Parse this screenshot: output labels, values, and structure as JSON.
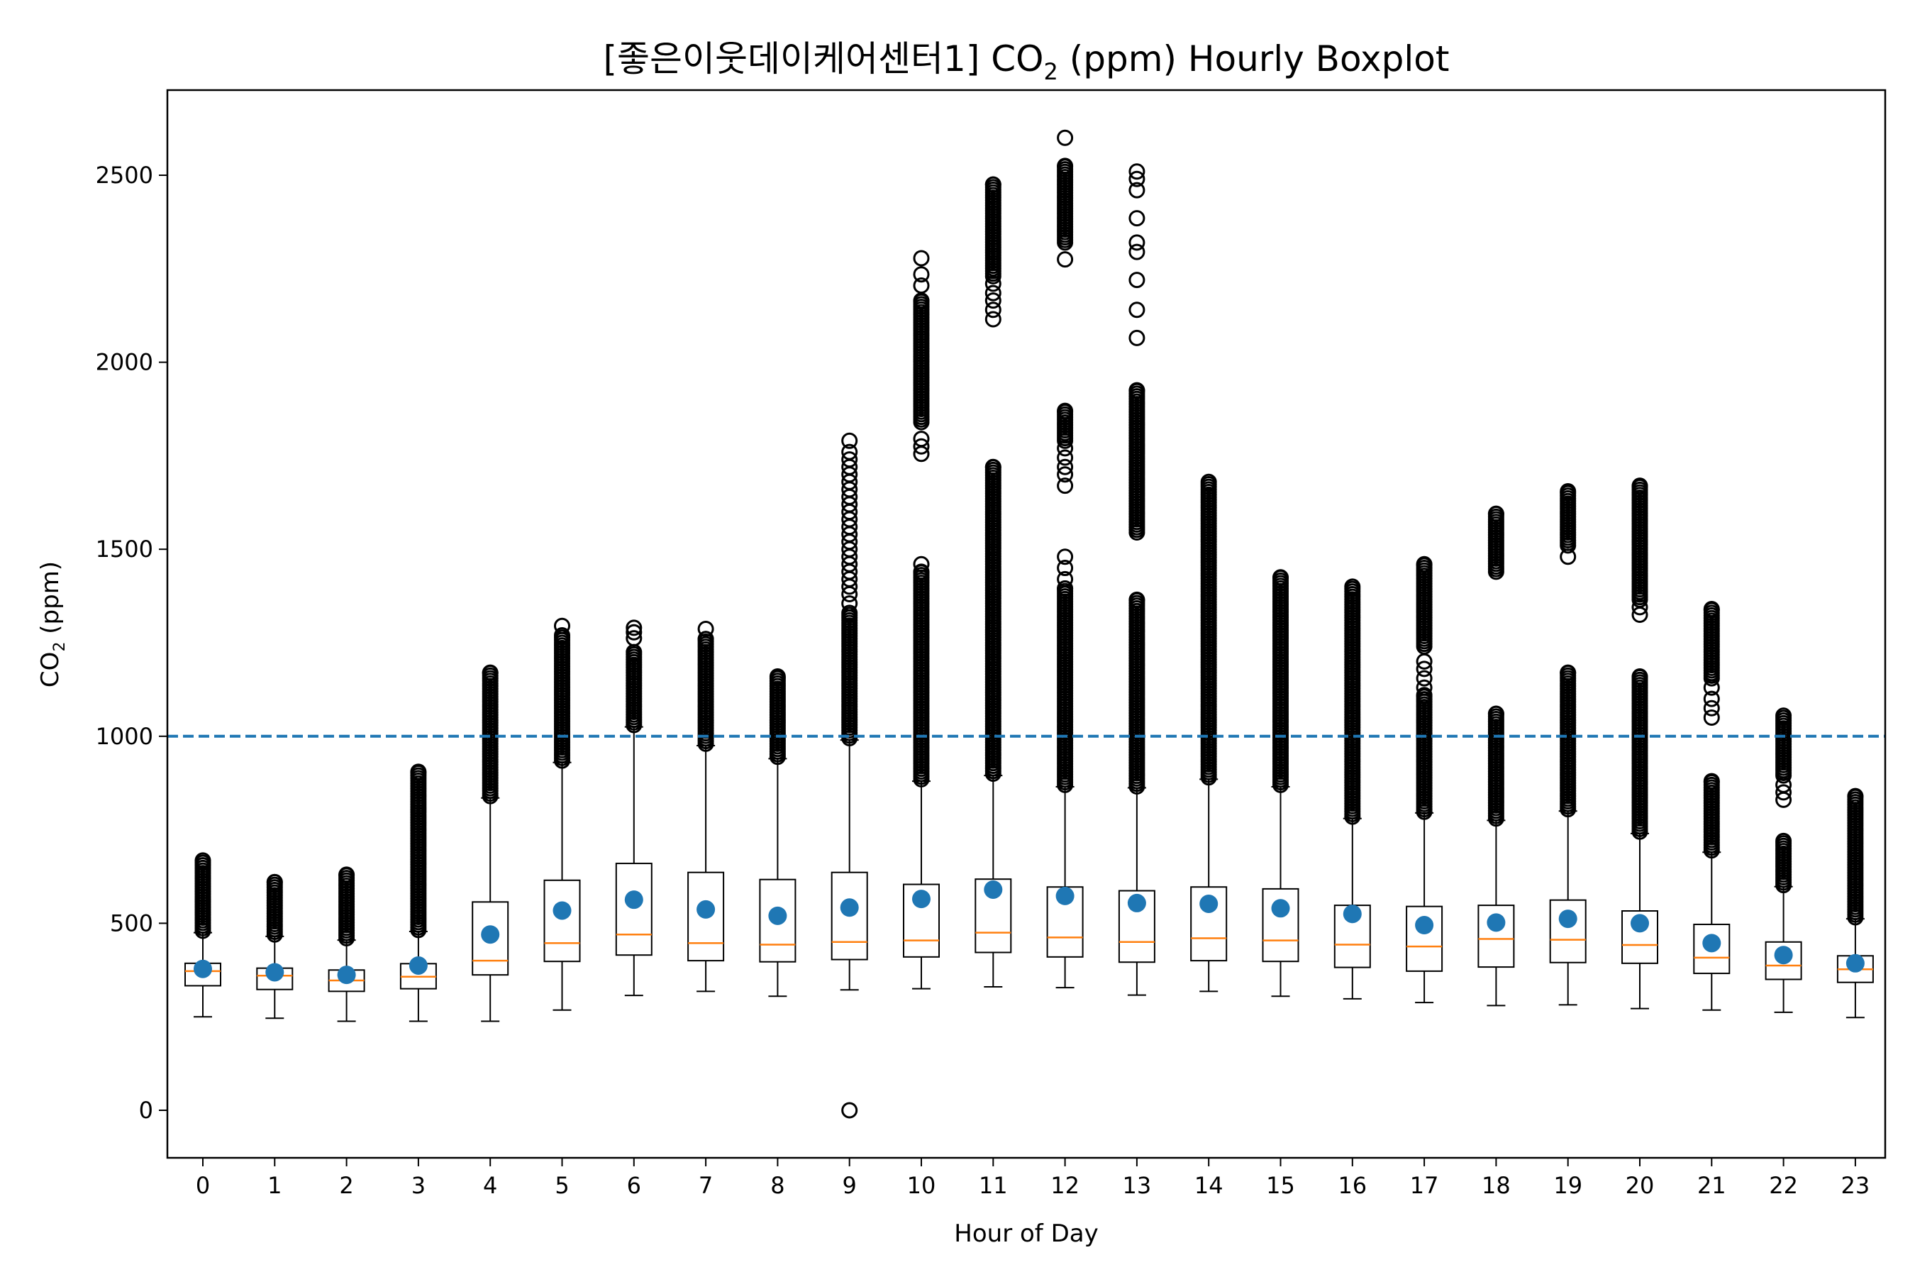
{
  "chart_data": {
    "type": "boxplot",
    "title": "[좋은이웃데이케어센터1] CO",
    "title_sub": "2",
    "title_tail": " (ppm) Hourly Boxplot",
    "xlabel": "Hour of Day",
    "ylabel": "CO",
    "ylabel_sub": "2",
    "ylabel_tail": " (ppm)",
    "ylim": [
      -125,
      2730
    ],
    "yticks": [
      0,
      500,
      1000,
      1500,
      2000,
      2500
    ],
    "threshold": 1000,
    "colors": {
      "median": "#ff7f0e",
      "mean": "#1f77b4",
      "threshold": "#1f77b4",
      "box": "#000000"
    },
    "categories": [
      "0",
      "1",
      "2",
      "3",
      "4",
      "5",
      "6",
      "7",
      "8",
      "9",
      "10",
      "11",
      "12",
      "13",
      "14",
      "15",
      "16",
      "17",
      "18",
      "19",
      "20",
      "21",
      "22",
      "23"
    ],
    "boxes": [
      {
        "hour": "0",
        "whislo": 250,
        "q1": 333,
        "median": 372,
        "q3": 393,
        "whishi": 475,
        "mean": 378,
        "fliers": [
          [
            480,
            668
          ]
        ]
      },
      {
        "hour": "1",
        "whislo": 246,
        "q1": 323,
        "median": 360,
        "q3": 380,
        "whishi": 465,
        "mean": 369,
        "fliers": [
          [
            470,
            610
          ]
        ]
      },
      {
        "hour": "2",
        "whislo": 238,
        "q1": 318,
        "median": 347,
        "q3": 375,
        "whishi": 455,
        "mean": 362,
        "fliers": [
          [
            460,
            630
          ]
        ]
      },
      {
        "hour": "3",
        "whislo": 238,
        "q1": 325,
        "median": 357,
        "q3": 392,
        "whishi": 478,
        "mean": 387,
        "fliers": [
          [
            482,
            905
          ]
        ]
      },
      {
        "hour": "4",
        "whislo": 238,
        "q1": 362,
        "median": 400,
        "q3": 557,
        "whishi": 835,
        "mean": 470,
        "fliers": [
          [
            840,
            1170
          ]
        ]
      },
      {
        "hour": "5",
        "whislo": 268,
        "q1": 398,
        "median": 447,
        "q3": 615,
        "whishi": 930,
        "mean": 534,
        "fliers": [
          [
            935,
            1270
          ],
          1295
        ]
      },
      {
        "hour": "6",
        "whislo": 307,
        "q1": 415,
        "median": 470,
        "q3": 660,
        "whishi": 1025,
        "mean": 563,
        "fliers": [
          [
            1030,
            1225
          ],
          1262,
          1278,
          1290
        ]
      },
      {
        "hour": "7",
        "whislo": 318,
        "q1": 400,
        "median": 447,
        "q3": 636,
        "whishi": 975,
        "mean": 537,
        "fliers": [
          [
            980,
            1260
          ],
          1287
        ]
      },
      {
        "hour": "8",
        "whislo": 305,
        "q1": 397,
        "median": 443,
        "q3": 617,
        "whishi": 940,
        "mean": 520,
        "fliers": [
          [
            945,
            1160
          ]
        ]
      },
      {
        "hour": "9",
        "whislo": 322,
        "q1": 403,
        "median": 450,
        "q3": 636,
        "whishi": 990,
        "mean": 542,
        "fliers": [
          0,
          [
            995,
            1330
          ],
          1355,
          1380,
          1400,
          1420,
          1440,
          1460,
          1480,
          1500,
          1520,
          1540,
          1560,
          1580,
          1600,
          1620,
          1640,
          1660,
          1680,
          1700,
          1720,
          1740,
          1760,
          1790
        ]
      },
      {
        "hour": "10",
        "whislo": 325,
        "q1": 410,
        "median": 454,
        "q3": 604,
        "whishi": 880,
        "mean": 565,
        "fliers": [
          [
            885,
            1440
          ],
          1460,
          1755,
          1775,
          1795,
          [
            1840,
            2165
          ],
          2205,
          2235,
          2278
        ]
      },
      {
        "hour": "11",
        "whislo": 330,
        "q1": 422,
        "median": 475,
        "q3": 618,
        "whishi": 895,
        "mean": 590,
        "fliers": [
          [
            900,
            1720
          ],
          2115,
          2140,
          2165,
          2185,
          2210,
          [
            2230,
            2475
          ]
        ]
      },
      {
        "hour": "12",
        "whislo": 328,
        "q1": 410,
        "median": 462,
        "q3": 597,
        "whishi": 865,
        "mean": 573,
        "fliers": [
          [
            870,
            1395
          ],
          1420,
          1450,
          1480,
          1670,
          1700,
          1720,
          1745,
          1770,
          [
            1790,
            1870
          ],
          2275,
          [
            2320,
            2525
          ],
          2600
        ]
      },
      {
        "hour": "13",
        "whislo": 308,
        "q1": 396,
        "median": 450,
        "q3": 587,
        "whishi": 862,
        "mean": 554,
        "fliers": [
          [
            866,
            1365
          ],
          [
            1545,
            1925
          ],
          2065,
          2140,
          2220,
          2295,
          2320,
          2385,
          2460,
          2490,
          2510
        ]
      },
      {
        "hour": "14",
        "whislo": 318,
        "q1": 400,
        "median": 460,
        "q3": 597,
        "whishi": 885,
        "mean": 552,
        "fliers": [
          [
            890,
            1680
          ]
        ]
      },
      {
        "hour": "15",
        "whislo": 305,
        "q1": 398,
        "median": 454,
        "q3": 592,
        "whishi": 865,
        "mean": 540,
        "fliers": [
          [
            870,
            1425
          ]
        ]
      },
      {
        "hour": "16",
        "whislo": 298,
        "q1": 382,
        "median": 443,
        "q3": 548,
        "whishi": 780,
        "mean": 525,
        "fliers": [
          [
            785,
            1400
          ]
        ]
      },
      {
        "hour": "17",
        "whislo": 288,
        "q1": 372,
        "median": 438,
        "q3": 545,
        "whishi": 795,
        "mean": 495,
        "fliers": [
          [
            798,
            1110
          ],
          1130,
          1155,
          1180,
          1200,
          [
            1240,
            1460
          ]
        ]
      },
      {
        "hour": "18",
        "whislo": 280,
        "q1": 383,
        "median": 458,
        "q3": 548,
        "whishi": 775,
        "mean": 502,
        "fliers": [
          [
            780,
            1060
          ],
          [
            1440,
            1595
          ]
        ]
      },
      {
        "hour": "19",
        "whislo": 282,
        "q1": 395,
        "median": 456,
        "q3": 562,
        "whishi": 800,
        "mean": 512,
        "fliers": [
          [
            805,
            1170
          ],
          1480,
          [
            1510,
            1655
          ]
        ]
      },
      {
        "hour": "20",
        "whislo": 272,
        "q1": 393,
        "median": 442,
        "q3": 533,
        "whishi": 740,
        "mean": 500,
        "fliers": [
          [
            745,
            1160
          ],
          1325,
          1345,
          [
            1365,
            1670
          ]
        ]
      },
      {
        "hour": "21",
        "whislo": 268,
        "q1": 366,
        "median": 408,
        "q3": 497,
        "whishi": 690,
        "mean": 447,
        "fliers": [
          [
            695,
            880
          ],
          1050,
          1075,
          1100,
          1130,
          [
            1155,
            1340
          ]
        ]
      },
      {
        "hour": "22",
        "whislo": 262,
        "q1": 350,
        "median": 387,
        "q3": 450,
        "whishi": 598,
        "mean": 415,
        "fliers": [
          [
            602,
            720
          ],
          830,
          850,
          870,
          [
            895,
            1055
          ]
        ]
      },
      {
        "hour": "23",
        "whislo": 248,
        "q1": 342,
        "median": 377,
        "q3": 413,
        "whishi": 512,
        "mean": 393,
        "fliers": [
          [
            516,
            840
          ]
        ]
      }
    ]
  }
}
